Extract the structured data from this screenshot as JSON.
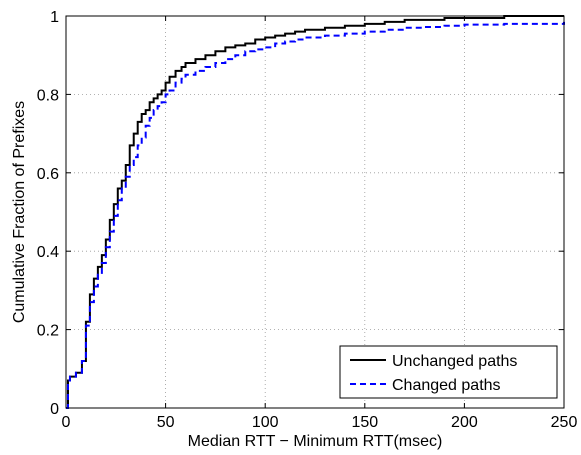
{
  "chart_data": {
    "type": "line",
    "xlabel": "Median RTT − Minimum RTT(msec)",
    "ylabel": "Cumulative Fraction of Prefixes",
    "xlim": [
      0,
      250
    ],
    "ylim": [
      0,
      1
    ],
    "x_ticks": [
      "0",
      "50",
      "100",
      "150",
      "200",
      "250"
    ],
    "y_ticks": [
      "0",
      "0.2",
      "0.4",
      "0.6",
      "0.8",
      "1"
    ],
    "grid": true,
    "legend_position": "bottom-right",
    "step": true,
    "series": [
      {
        "name": "Unchanged paths",
        "color": "#000000",
        "style": "solid",
        "x": [
          0,
          1,
          2,
          5,
          8,
          10,
          12,
          14,
          16,
          18,
          20,
          22,
          24,
          26,
          28,
          30,
          32,
          34,
          36,
          38,
          40,
          42,
          44,
          46,
          48,
          50,
          52,
          55,
          58,
          60,
          65,
          70,
          75,
          80,
          85,
          90,
          95,
          100,
          105,
          110,
          115,
          120,
          130,
          140,
          150,
          160,
          170,
          180,
          190,
          200,
          220,
          250
        ],
        "y": [
          0,
          0.07,
          0.08,
          0.09,
          0.12,
          0.22,
          0.29,
          0.33,
          0.36,
          0.39,
          0.43,
          0.48,
          0.52,
          0.56,
          0.58,
          0.62,
          0.67,
          0.7,
          0.73,
          0.75,
          0.76,
          0.78,
          0.79,
          0.8,
          0.81,
          0.83,
          0.845,
          0.86,
          0.87,
          0.88,
          0.89,
          0.9,
          0.91,
          0.92,
          0.925,
          0.93,
          0.94,
          0.945,
          0.95,
          0.955,
          0.96,
          0.965,
          0.97,
          0.975,
          0.98,
          0.985,
          0.99,
          0.99,
          0.995,
          0.995,
          1.0,
          1.0
        ]
      },
      {
        "name": "Changed paths",
        "color": "#0000ff",
        "style": "dashed",
        "x": [
          0,
          1,
          2,
          5,
          8,
          10,
          12,
          14,
          16,
          18,
          20,
          22,
          24,
          26,
          28,
          30,
          32,
          34,
          36,
          38,
          40,
          42,
          44,
          46,
          48,
          50,
          52,
          55,
          58,
          60,
          65,
          70,
          75,
          80,
          85,
          90,
          95,
          100,
          105,
          110,
          115,
          120,
          130,
          140,
          150,
          160,
          170,
          180,
          190,
          200,
          220,
          250
        ],
        "y": [
          0,
          0.07,
          0.08,
          0.09,
          0.12,
          0.21,
          0.27,
          0.31,
          0.34,
          0.37,
          0.41,
          0.45,
          0.49,
          0.53,
          0.56,
          0.59,
          0.62,
          0.64,
          0.67,
          0.69,
          0.72,
          0.74,
          0.76,
          0.77,
          0.78,
          0.8,
          0.81,
          0.83,
          0.84,
          0.85,
          0.86,
          0.87,
          0.88,
          0.89,
          0.9,
          0.91,
          0.915,
          0.92,
          0.93,
          0.935,
          0.94,
          0.945,
          0.95,
          0.955,
          0.96,
          0.965,
          0.97,
          0.972,
          0.975,
          0.978,
          0.98,
          0.985
        ]
      }
    ]
  }
}
